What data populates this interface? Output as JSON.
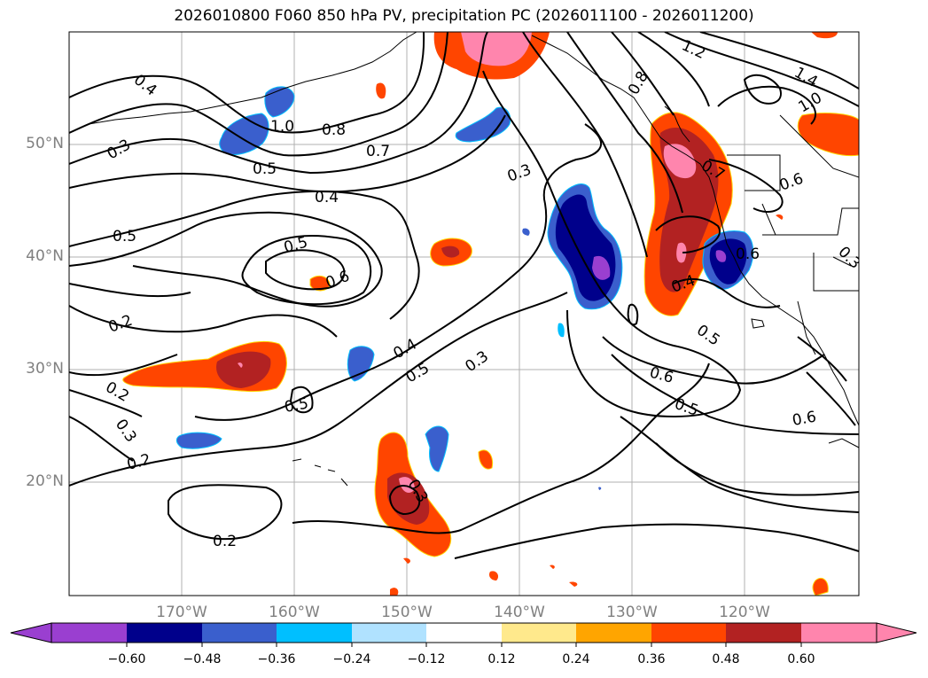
{
  "title": "2026010800 F060 850 hPa PV, precipitation PC (2026011100 - 2026011200)",
  "latitude_labels": [
    "50°N",
    "40°N",
    "30°N",
    "20°N"
  ],
  "longitude_labels": [
    "170°W",
    "160°W",
    "150°W",
    "140°W",
    "130°W",
    "120°W"
  ],
  "contour_labels": [
    "0.4",
    "0.3",
    "0.3",
    "1.0",
    "0.8",
    "0.7",
    "0.5",
    "0.4",
    "0.5",
    "0.5",
    "0.6",
    "0.2",
    "0.2",
    "0.3",
    "0.2",
    "0.2",
    "0.5",
    "0.4",
    "0.5",
    "0.3",
    "0.3",
    "1.2",
    "1.4",
    "1.0",
    "0.6",
    "0.4",
    "0.5",
    "0.6",
    "0.5",
    "0.6",
    "0.6",
    "0.7",
    "0.8",
    "0.3"
  ],
  "colorbar": {
    "ticks": [
      "−0.60",
      "−0.48",
      "−0.36",
      "−0.24",
      "−0.12",
      "0.12",
      "0.24",
      "0.36",
      "0.48",
      "0.60"
    ],
    "colors": [
      "#9a3fd0",
      "#00008b",
      "#3a5fcd",
      "#00bfff",
      "#b0e2ff",
      "#ffffff",
      "#ffe98c",
      "#ffa500",
      "#ff4500",
      "#b22222",
      "#ff85ad",
      "#ff85ad"
    ]
  },
  "colors": {
    "ocean": "#ffffff",
    "grid": "#b0b0b0",
    "contour": "#000000"
  }
}
